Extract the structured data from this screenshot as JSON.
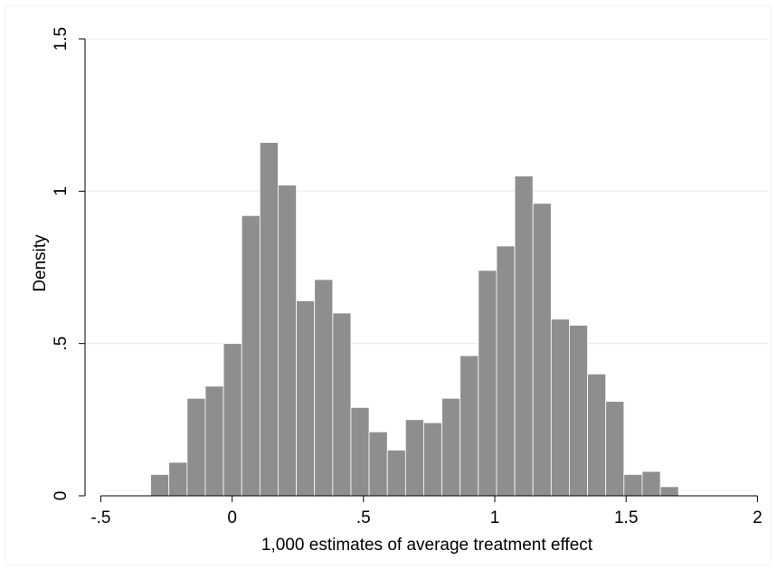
{
  "chart_data": {
    "type": "histogram",
    "xlabel": "1,000 estimates of average treatment effect",
    "ylabel": "Density",
    "xlim": [
      -0.56,
      2.04
    ],
    "ylim": [
      0,
      1.5
    ],
    "x_ticks": [
      -0.5,
      0,
      0.5,
      1,
      1.5,
      2
    ],
    "x_tick_labels": [
      "-.5",
      "0",
      ".5",
      "1",
      "1.5",
      "2"
    ],
    "y_ticks": [
      0,
      0.5,
      1,
      1.5
    ],
    "y_tick_labels": [
      "0",
      ".5",
      "1",
      "1.5"
    ],
    "grid": true,
    "legend": "none",
    "bar_color": "#8e8e8e",
    "bin_start": -0.31,
    "bin_width": 0.0693,
    "values": [
      0.07,
      0.11,
      0.32,
      0.36,
      0.5,
      0.92,
      1.16,
      1.02,
      0.64,
      0.71,
      0.6,
      0.29,
      0.21,
      0.15,
      0.25,
      0.24,
      0.32,
      0.46,
      0.74,
      0.82,
      1.05,
      0.96,
      0.58,
      0.56,
      0.4,
      0.31,
      0.07,
      0.08,
      0.03
    ]
  }
}
